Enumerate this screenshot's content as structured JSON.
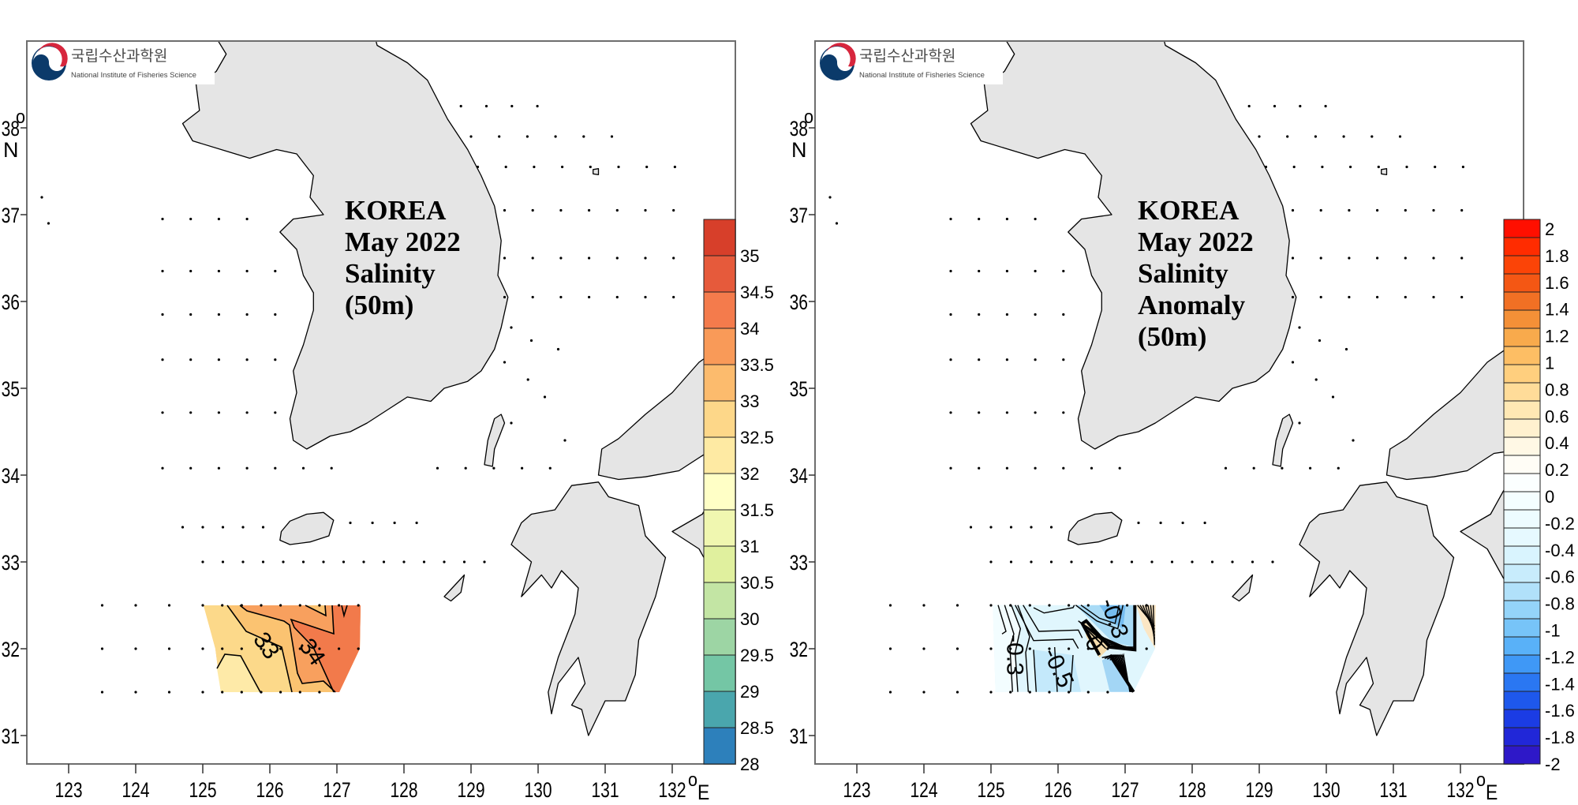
{
  "logo": {
    "korean_name": "국립수산과학원",
    "english_name": "National Institute of Fisheries Science",
    "colors": {
      "blue": "#0b3a6a",
      "red": "#d7263d"
    }
  },
  "axes": {
    "lat_labels": [
      "31",
      "32",
      "33",
      "34",
      "35",
      "36",
      "37",
      "38"
    ],
    "lat_values": [
      31,
      32,
      33,
      34,
      35,
      36,
      37,
      38
    ],
    "lon_labels": [
      "123",
      "124",
      "125",
      "126",
      "127",
      "128",
      "129",
      "130",
      "131",
      "132"
    ],
    "lon_values": [
      123,
      124,
      125,
      126,
      127,
      128,
      129,
      130,
      131,
      132
    ],
    "degree_symbol": "o",
    "north_label": "N",
    "east_label": "E"
  },
  "panels": [
    {
      "title_lines": [
        "KOREA",
        "May 2022",
        "Salinity",
        "(50m)"
      ],
      "contour_labels": [
        "33",
        "34"
      ]
    },
    {
      "title_lines": [
        "KOREA",
        "May 2022",
        "Salinity",
        "Anomaly",
        "(50m)"
      ],
      "contour_labels": [
        "-0.3",
        "-0.5",
        "-0.3",
        "0"
      ]
    }
  ],
  "chart_data": [
    {
      "type": "heatmap",
      "title": "KOREA May 2022 Salinity (50m)",
      "xlabel": "°E",
      "ylabel": "°N",
      "xlim": [
        122.4,
        132.9
      ],
      "ylim": [
        30.7,
        39.0
      ],
      "contour_levels_labeled": [
        33,
        34
      ],
      "sampled_region": {
        "lon": [
          125.0,
          127.35
        ],
        "lat": [
          31.5,
          32.5
        ]
      },
      "value_range_in_region": [
        32.0,
        34.5
      ],
      "colorbar": {
        "min": 28,
        "max": 35.5,
        "step": 0.5,
        "labels": [
          "35",
          "34.5",
          "34",
          "33.5",
          "33",
          "32.5",
          "32",
          "31.5",
          "31",
          "30.5",
          "30",
          "29.5",
          "29",
          "28.5",
          "28"
        ],
        "colors": [
          "#d73f2a",
          "#e65a3b",
          "#f47b4c",
          "#f99a58",
          "#fcbb6d",
          "#fdd789",
          "#feeaa3",
          "#ffffc6",
          "#f0f7b0",
          "#e0f09e",
          "#c3e5a4",
          "#9dd5a4",
          "#74c6a5",
          "#4aa6ad",
          "#2d80bb"
        ]
      }
    },
    {
      "type": "heatmap",
      "title": "KOREA May 2022 Salinity Anomaly (50m)",
      "xlabel": "°E",
      "ylabel": "°N",
      "xlim": [
        122.4,
        132.9
      ],
      "ylim": [
        30.7,
        39.0
      ],
      "contour_levels_labeled": [
        -0.3,
        -0.5,
        -0.3,
        0
      ],
      "sampled_region": {
        "lon": [
          125.0,
          127.35
        ],
        "lat": [
          31.5,
          32.5
        ]
      },
      "value_range_in_region": [
        -0.9,
        0.4
      ],
      "colorbar": {
        "min": -2,
        "max": 2.1,
        "labels": [
          "2",
          "1.8",
          "1.6",
          "1.4",
          "1.2",
          "1",
          "0.8",
          "0.6",
          "0.4",
          "0.2",
          "0",
          "-0.2",
          "-0.4",
          "-0.6",
          "-0.8",
          "-1",
          "-1.2",
          "-1.4",
          "-1.6",
          "-1.8",
          "-2"
        ],
        "color_stops": [
          "#ff0000",
          "#ff3a00",
          "#f0601a",
          "#f5a040",
          "#ffc870",
          "#ffe3a6",
          "#fff6dc",
          "#ffffff",
          "#f0fdff",
          "#e2f8ff",
          "#bfe8fb",
          "#86cdf8",
          "#4aa8f8",
          "#1f66f0",
          "#1a2ee0",
          "#3510c0"
        ]
      }
    }
  ]
}
